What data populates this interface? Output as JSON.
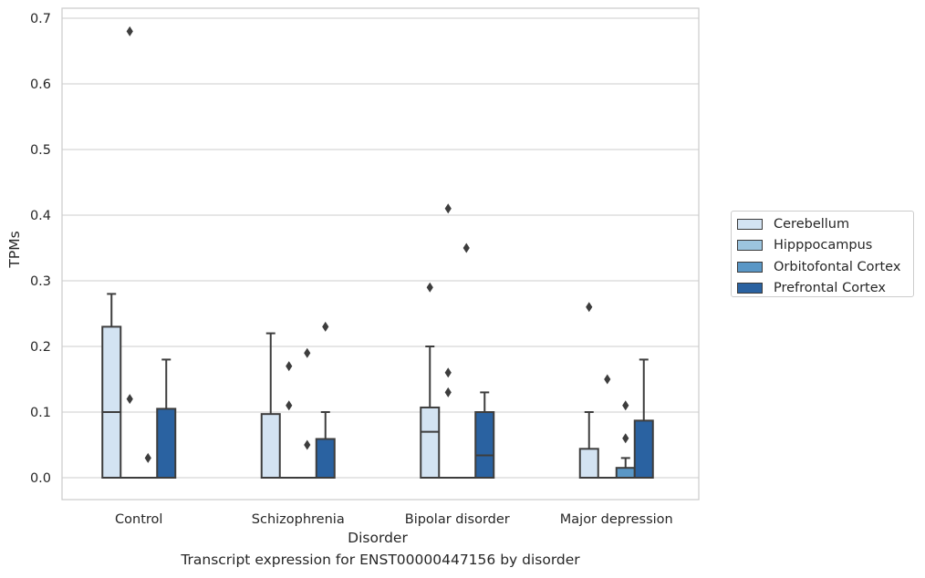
{
  "chart_data": {
    "type": "boxplot",
    "title": "",
    "xlabel": "Disorder",
    "ylabel": "TPMs",
    "caption": "Transcript expression for ENST00000447156 by disorder",
    "ylim": [
      -0.034,
      0.716
    ],
    "yticks": [
      "0.0",
      "0.1",
      "0.2",
      "0.3",
      "0.4",
      "0.5",
      "0.6",
      "0.7"
    ],
    "grid": "horizontal",
    "legend_position": "right",
    "categories": [
      "Control",
      "Schizophrenia",
      "Bipolar disorder",
      "Major depression"
    ],
    "series": [
      {
        "name": "Cerebellum",
        "color": "#d3e3f2",
        "boxes": [
          {
            "q1": 0.0,
            "median": 0.1,
            "q3": 0.23,
            "whisker_low": 0.0,
            "whisker_high": 0.28,
            "outliers": []
          },
          {
            "q1": 0.0,
            "median": 0.0,
            "q3": 0.097,
            "whisker_low": 0.0,
            "whisker_high": 0.22,
            "outliers": []
          },
          {
            "q1": 0.0,
            "median": 0.07,
            "q3": 0.107,
            "whisker_low": 0.0,
            "whisker_high": 0.2,
            "outliers": [
              0.29
            ]
          },
          {
            "q1": 0.0,
            "median": 0.0,
            "q3": 0.044,
            "whisker_low": 0.0,
            "whisker_high": 0.1,
            "outliers": [
              0.26
            ]
          }
        ]
      },
      {
        "name": "Hipppocampus",
        "color": "#9cc5df",
        "boxes": [
          {
            "q1": 0.0,
            "median": 0.0,
            "q3": 0.0,
            "whisker_low": 0.0,
            "whisker_high": 0.0,
            "outliers": [
              0.12,
              0.68
            ]
          },
          {
            "q1": 0.0,
            "median": 0.0,
            "q3": 0.0,
            "whisker_low": 0.0,
            "whisker_high": 0.0,
            "outliers": [
              0.11,
              0.17
            ]
          },
          {
            "q1": 0.0,
            "median": 0.0,
            "q3": 0.0,
            "whisker_low": 0.0,
            "whisker_high": 0.0,
            "outliers": [
              0.13,
              0.16,
              0.41
            ]
          },
          {
            "q1": 0.0,
            "median": 0.0,
            "q3": 0.0,
            "whisker_low": 0.0,
            "whisker_high": 0.0,
            "outliers": [
              0.15
            ]
          }
        ]
      },
      {
        "name": "Orbitofontal Cortex",
        "color": "#5a97c6",
        "boxes": [
          {
            "q1": 0.0,
            "median": 0.0,
            "q3": 0.0,
            "whisker_low": 0.0,
            "whisker_high": 0.0,
            "outliers": [
              0.03
            ]
          },
          {
            "q1": 0.0,
            "median": 0.0,
            "q3": 0.0,
            "whisker_low": 0.0,
            "whisker_high": 0.0,
            "outliers": [
              0.05,
              0.19
            ]
          },
          {
            "q1": 0.0,
            "median": 0.0,
            "q3": 0.0,
            "whisker_low": 0.0,
            "whisker_high": 0.0,
            "outliers": [
              0.35
            ]
          },
          {
            "q1": 0.0,
            "median": 0.0,
            "q3": 0.015,
            "whisker_low": 0.0,
            "whisker_high": 0.03,
            "outliers": [
              0.06,
              0.11
            ]
          }
        ]
      },
      {
        "name": "Prefrontal Cortex",
        "color": "#2a62a1",
        "boxes": [
          {
            "q1": 0.0,
            "median": 0.0,
            "q3": 0.105,
            "whisker_low": 0.0,
            "whisker_high": 0.18,
            "outliers": []
          },
          {
            "q1": 0.0,
            "median": 0.0,
            "q3": 0.059,
            "whisker_low": 0.0,
            "whisker_high": 0.1,
            "outliers": [
              0.23
            ]
          },
          {
            "q1": 0.0,
            "median": 0.034,
            "q3": 0.1,
            "whisker_low": 0.0,
            "whisker_high": 0.13,
            "outliers": []
          },
          {
            "q1": 0.0,
            "median": 0.0,
            "q3": 0.087,
            "whisker_low": 0.0,
            "whisker_high": 0.18,
            "outliers": []
          }
        ]
      }
    ]
  }
}
